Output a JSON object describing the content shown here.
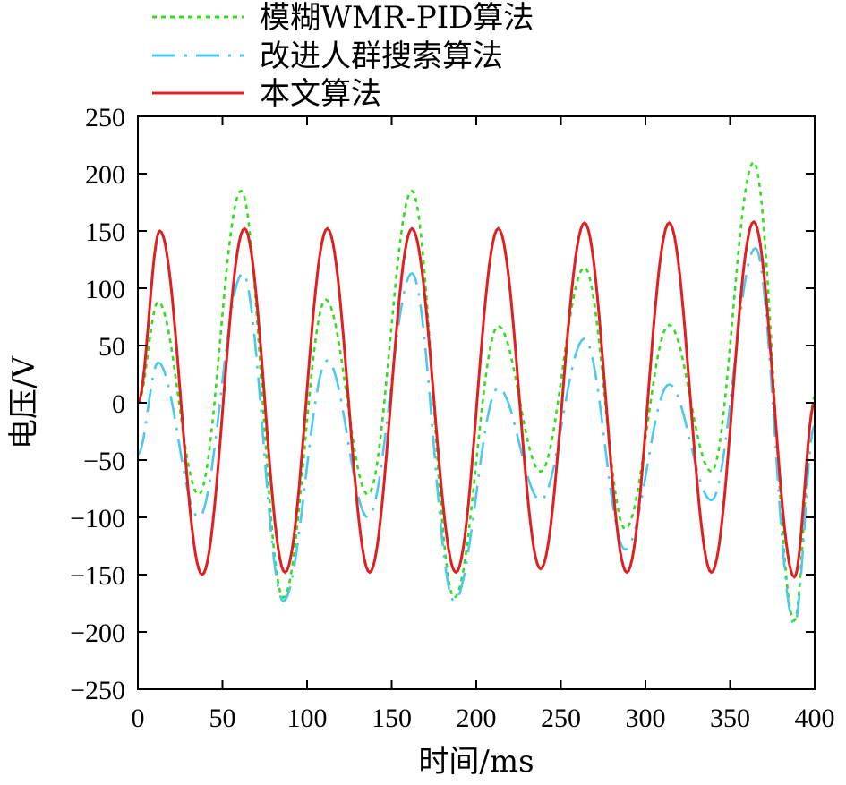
{
  "chart_data": {
    "type": "line",
    "xlabel": "时间/ms",
    "ylabel": "电压/V",
    "xlim": [
      0,
      400
    ],
    "ylim": [
      -250,
      250
    ],
    "xticks": [
      0,
      50,
      100,
      150,
      200,
      250,
      300,
      350,
      400
    ],
    "yticks": [
      250,
      200,
      150,
      100,
      50,
      0,
      -50,
      -100,
      -150,
      -200,
      -250
    ],
    "xtick_labels": [
      "0",
      "50",
      "100",
      "150",
      "200",
      "250",
      "300",
      "350",
      "400"
    ],
    "ytick_labels": [
      "250",
      "200",
      "150",
      "100",
      "50",
      "0",
      "−50",
      "−100",
      "−150",
      "−200",
      "−250"
    ],
    "grid": false,
    "legend_position": "top-left, above plot",
    "series": [
      {
        "name": "模糊WMR-PID算法",
        "color": "#33dd22",
        "style": "dotted",
        "x": [
          0,
          12,
          36,
          61,
          86,
          111,
          136,
          162,
          187,
          213,
          238,
          264,
          288,
          314,
          339,
          364,
          388,
          400
        ],
        "values": [
          0,
          88,
          -80,
          185,
          -170,
          90,
          -80,
          185,
          -170,
          67,
          -60,
          118,
          -110,
          68,
          -60,
          210,
          -190,
          5
        ]
      },
      {
        "name": "改进人群搜索算法",
        "color": "#4cc8ee",
        "style": "dash-dot",
        "x": [
          0,
          12,
          36,
          62,
          86,
          112,
          136,
          162,
          187,
          213,
          238,
          264,
          288,
          314,
          339,
          365,
          388,
          400
        ],
        "values": [
          -45,
          35,
          -100,
          113,
          -173,
          37,
          -100,
          113,
          -173,
          13,
          -85,
          56,
          -128,
          16,
          -85,
          135,
          -193,
          -20
        ]
      },
      {
        "name": "本文算法",
        "color": "#e02020",
        "style": "solid",
        "x": [
          0,
          13,
          38,
          63,
          87,
          112,
          137,
          162,
          188,
          213,
          238,
          264,
          289,
          314,
          339,
          364,
          388,
          400
        ],
        "values": [
          0,
          150,
          -150,
          152,
          -148,
          152,
          -148,
          152,
          -148,
          152,
          -145,
          157,
          -148,
          157,
          -148,
          158,
          -152,
          0
        ]
      }
    ]
  }
}
